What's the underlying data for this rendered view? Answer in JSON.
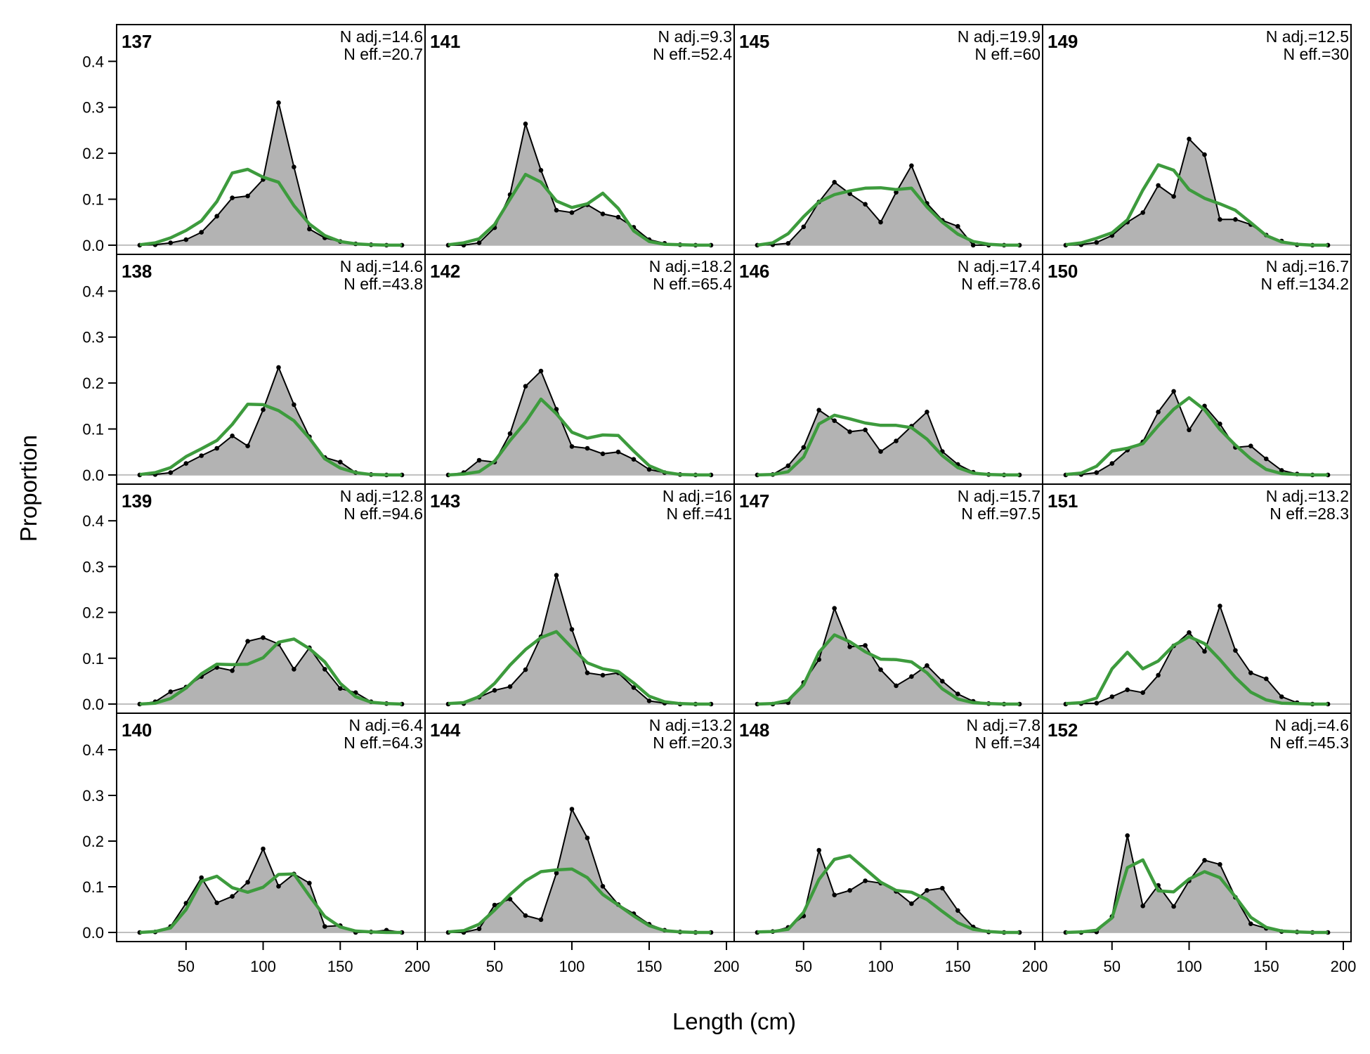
{
  "colors": {
    "observed_fill": "#b3b3b3",
    "observed_line": "#000000",
    "expected_line": "#3d9b3d",
    "zero_line": "#bfbfbf"
  },
  "chart_data": {
    "type": "area",
    "xlabel": "Length (cm)",
    "ylabel": "Proportion",
    "xlim": [
      5,
      205
    ],
    "ylim": [
      -0.02,
      0.48
    ],
    "xticks": [
      50,
      100,
      150,
      200
    ],
    "yticks": [
      0.0,
      0.1,
      0.2,
      0.3,
      0.4
    ],
    "x": [
      20,
      30,
      40,
      50,
      60,
      70,
      80,
      90,
      100,
      110,
      120,
      130,
      140,
      150,
      160,
      170,
      180,
      190
    ],
    "layout": "4 rows x 4 columns, panels ordered column-wise",
    "grid": false,
    "legend": "none",
    "series_roles": [
      "observed (grey area, black line with points)",
      "expected (green line)"
    ],
    "panels": [
      {
        "id": "137",
        "n_adj_label": "N adj.=14.6",
        "n_eff_label": "N eff.=20.7",
        "observed": [
          0,
          0.001,
          0.005,
          0.012,
          0.028,
          0.063,
          0.103,
          0.107,
          0.143,
          0.31,
          0.17,
          0.035,
          0.016,
          0.008,
          0.003,
          0.001,
          0,
          0
        ],
        "expected": [
          0.001,
          0.005,
          0.016,
          0.032,
          0.053,
          0.095,
          0.157,
          0.165,
          0.148,
          0.137,
          0.086,
          0.046,
          0.021,
          0.008,
          0.003,
          0.001,
          0,
          0
        ]
      },
      {
        "id": "138",
        "n_adj_label": "N adj.=14.6",
        "n_eff_label": "N eff.=43.8",
        "observed": [
          0,
          0.001,
          0.005,
          0.025,
          0.042,
          0.058,
          0.085,
          0.063,
          0.142,
          0.234,
          0.153,
          0.083,
          0.038,
          0.028,
          0.005,
          0.001,
          0,
          0
        ],
        "expected": [
          0.001,
          0.005,
          0.016,
          0.04,
          0.057,
          0.075,
          0.11,
          0.154,
          0.153,
          0.14,
          0.118,
          0.08,
          0.035,
          0.015,
          0.005,
          0.001,
          0,
          0
        ]
      },
      {
        "id": "139",
        "n_adj_label": "N adj.=12.8",
        "n_eff_label": "N eff.=94.6",
        "observed": [
          0,
          0.005,
          0.027,
          0.037,
          0.06,
          0.08,
          0.073,
          0.137,
          0.145,
          0.131,
          0.076,
          0.123,
          0.076,
          0.034,
          0.025,
          0.005,
          0.001,
          0
        ],
        "expected": [
          0,
          0.002,
          0.012,
          0.035,
          0.066,
          0.087,
          0.086,
          0.087,
          0.101,
          0.135,
          0.142,
          0.121,
          0.092,
          0.045,
          0.016,
          0.004,
          0.001,
          0
        ]
      },
      {
        "id": "140",
        "n_adj_label": "N adj.=6.4",
        "n_eff_label": "N eff.=64.3",
        "observed": [
          0,
          0.001,
          0.013,
          0.064,
          0.12,
          0.065,
          0.079,
          0.11,
          0.183,
          0.101,
          0.128,
          0.108,
          0.013,
          0.015,
          0,
          0.001,
          0.005,
          0
        ],
        "expected": [
          0,
          0.002,
          0.01,
          0.05,
          0.112,
          0.123,
          0.098,
          0.088,
          0.099,
          0.127,
          0.128,
          0.08,
          0.035,
          0.012,
          0.003,
          0.001,
          0,
          0
        ]
      },
      {
        "id": "141",
        "n_adj_label": "N adj.=9.3",
        "n_eff_label": "N eff.=52.4",
        "observed": [
          0,
          0,
          0.005,
          0.038,
          0.11,
          0.264,
          0.163,
          0.076,
          0.071,
          0.088,
          0.068,
          0.061,
          0.039,
          0.012,
          0.004,
          0.001,
          0,
          0
        ],
        "expected": [
          0.001,
          0.005,
          0.014,
          0.045,
          0.1,
          0.154,
          0.137,
          0.096,
          0.082,
          0.09,
          0.113,
          0.08,
          0.031,
          0.008,
          0.002,
          0.001,
          0,
          0
        ]
      },
      {
        "id": "142",
        "n_adj_label": "N adj.=18.2",
        "n_eff_label": "N eff.=65.4",
        "observed": [
          0,
          0.005,
          0.032,
          0.028,
          0.09,
          0.193,
          0.226,
          0.143,
          0.062,
          0.058,
          0.046,
          0.05,
          0.034,
          0.012,
          0.005,
          0.001,
          0,
          0
        ],
        "expected": [
          0,
          0.002,
          0.007,
          0.03,
          0.075,
          0.115,
          0.165,
          0.133,
          0.093,
          0.08,
          0.087,
          0.086,
          0.052,
          0.02,
          0.006,
          0.001,
          0,
          0
        ]
      },
      {
        "id": "143",
        "n_adj_label": "N adj.=16",
        "n_eff_label": "N eff.=41",
        "observed": [
          0,
          0.001,
          0.015,
          0.03,
          0.038,
          0.075,
          0.147,
          0.281,
          0.163,
          0.068,
          0.063,
          0.068,
          0.036,
          0.007,
          0.002,
          0,
          0,
          0
        ],
        "expected": [
          0.001,
          0.003,
          0.016,
          0.045,
          0.085,
          0.119,
          0.145,
          0.158,
          0.123,
          0.09,
          0.077,
          0.071,
          0.046,
          0.017,
          0.005,
          0.001,
          0,
          0
        ]
      },
      {
        "id": "144",
        "n_adj_label": "N adj.=13.2",
        "n_eff_label": "N eff.=20.3",
        "observed": [
          0,
          0,
          0.008,
          0.06,
          0.073,
          0.037,
          0.028,
          0.13,
          0.27,
          0.207,
          0.101,
          0.061,
          0.041,
          0.018,
          0.005,
          0.001,
          0,
          0
        ],
        "expected": [
          0.001,
          0.004,
          0.018,
          0.049,
          0.083,
          0.113,
          0.133,
          0.137,
          0.139,
          0.12,
          0.083,
          0.06,
          0.036,
          0.015,
          0.004,
          0.001,
          0,
          0
        ]
      },
      {
        "id": "145",
        "n_adj_label": "N adj.=19.9",
        "n_eff_label": "N eff.=60",
        "observed": [
          0,
          0.001,
          0.004,
          0.04,
          0.094,
          0.137,
          0.112,
          0.089,
          0.05,
          0.115,
          0.173,
          0.091,
          0.054,
          0.041,
          0,
          0,
          0,
          0
        ],
        "expected": [
          0,
          0.005,
          0.025,
          0.062,
          0.094,
          0.11,
          0.118,
          0.124,
          0.125,
          0.121,
          0.124,
          0.083,
          0.05,
          0.024,
          0.008,
          0.002,
          0,
          0
        ]
      },
      {
        "id": "146",
        "n_adj_label": "N adj.=17.4",
        "n_eff_label": "N eff.=78.6",
        "observed": [
          0,
          0.001,
          0.02,
          0.06,
          0.141,
          0.118,
          0.094,
          0.098,
          0.051,
          0.074,
          0.106,
          0.137,
          0.051,
          0.023,
          0.006,
          0.001,
          0,
          0
        ],
        "expected": [
          0,
          0.001,
          0.007,
          0.039,
          0.111,
          0.13,
          0.122,
          0.113,
          0.108,
          0.108,
          0.103,
          0.078,
          0.042,
          0.016,
          0.004,
          0.001,
          0,
          0
        ]
      },
      {
        "id": "147",
        "n_adj_label": "N adj.=15.7",
        "n_eff_label": "N eff.=97.5",
        "observed": [
          0,
          0,
          0.003,
          0.047,
          0.097,
          0.209,
          0.125,
          0.128,
          0.075,
          0.04,
          0.06,
          0.084,
          0.05,
          0.022,
          0.006,
          0.001,
          0,
          0
        ],
        "expected": [
          0,
          0.001,
          0.008,
          0.042,
          0.113,
          0.151,
          0.136,
          0.114,
          0.098,
          0.097,
          0.092,
          0.068,
          0.033,
          0.011,
          0.003,
          0.001,
          0,
          0
        ]
      },
      {
        "id": "148",
        "n_adj_label": "N adj.=7.8",
        "n_eff_label": "N eff.=34",
        "observed": [
          0,
          0.002,
          0.011,
          0.036,
          0.18,
          0.082,
          0.092,
          0.113,
          0.108,
          0.09,
          0.063,
          0.092,
          0.097,
          0.048,
          0.012,
          0.001,
          0,
          0
        ],
        "expected": [
          0.001,
          0.002,
          0.007,
          0.044,
          0.116,
          0.16,
          0.168,
          0.139,
          0.11,
          0.092,
          0.088,
          0.072,
          0.046,
          0.021,
          0.007,
          0.002,
          0,
          0
        ]
      },
      {
        "id": "149",
        "n_adj_label": "N adj.=12.5",
        "n_eff_label": "N eff.=30",
        "observed": [
          0,
          0.001,
          0.006,
          0.021,
          0.05,
          0.071,
          0.13,
          0.106,
          0.231,
          0.197,
          0.056,
          0.056,
          0.045,
          0.022,
          0.009,
          0.001,
          0,
          0
        ],
        "expected": [
          0.001,
          0.005,
          0.015,
          0.027,
          0.055,
          0.12,
          0.175,
          0.163,
          0.121,
          0.102,
          0.09,
          0.076,
          0.049,
          0.021,
          0.007,
          0.002,
          0,
          0
        ]
      },
      {
        "id": "150",
        "n_adj_label": "N adj.=16.7",
        "n_eff_label": "N eff.=134.2",
        "observed": [
          0,
          0.001,
          0.005,
          0.025,
          0.054,
          0.072,
          0.137,
          0.182,
          0.098,
          0.15,
          0.111,
          0.06,
          0.063,
          0.035,
          0.01,
          0.002,
          0,
          0
        ],
        "expected": [
          0.001,
          0.004,
          0.019,
          0.052,
          0.058,
          0.068,
          0.107,
          0.143,
          0.168,
          0.142,
          0.099,
          0.065,
          0.035,
          0.012,
          0.003,
          0.001,
          0,
          0
        ]
      },
      {
        "id": "151",
        "n_adj_label": "N adj.=13.2",
        "n_eff_label": "N eff.=28.3",
        "observed": [
          0,
          0.001,
          0.002,
          0.016,
          0.031,
          0.025,
          0.063,
          0.127,
          0.156,
          0.115,
          0.214,
          0.117,
          0.068,
          0.055,
          0.016,
          0.003,
          0,
          0
        ],
        "expected": [
          0.001,
          0.003,
          0.013,
          0.077,
          0.113,
          0.077,
          0.094,
          0.128,
          0.147,
          0.132,
          0.097,
          0.058,
          0.026,
          0.009,
          0.002,
          0.001,
          0,
          0
        ]
      },
      {
        "id": "152",
        "n_adj_label": "N adj.=4.6",
        "n_eff_label": "N eff.=45.3",
        "observed": [
          0,
          0,
          0.001,
          0.035,
          0.212,
          0.058,
          0.103,
          0.057,
          0.113,
          0.158,
          0.149,
          0.077,
          0.019,
          0.009,
          0.002,
          0.001,
          0,
          0
        ],
        "expected": [
          0,
          0.001,
          0.005,
          0.032,
          0.142,
          0.159,
          0.091,
          0.089,
          0.117,
          0.133,
          0.12,
          0.078,
          0.033,
          0.011,
          0.003,
          0.001,
          0,
          0
        ]
      }
    ]
  }
}
